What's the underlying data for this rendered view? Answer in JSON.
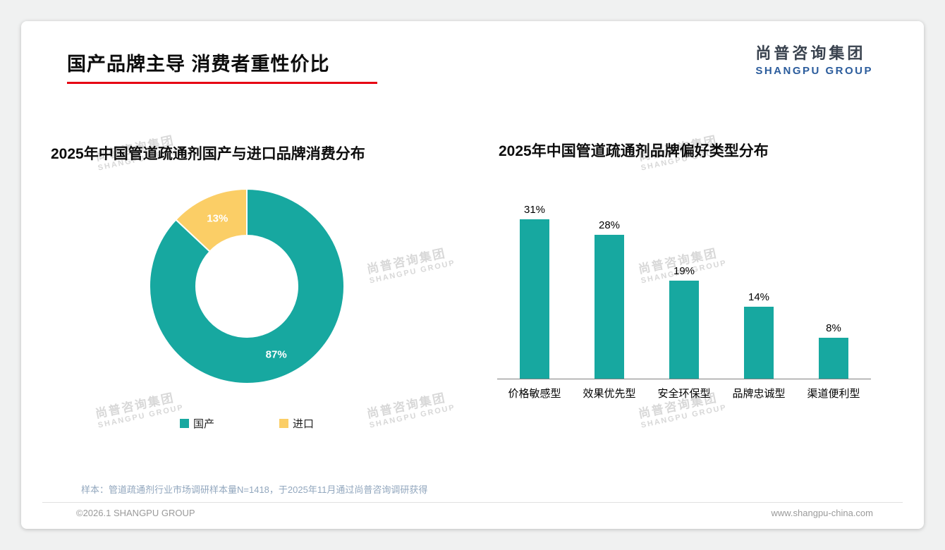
{
  "header": {
    "title": "国产品牌主导 消费者重性价比",
    "logo_cn": "尚普咨询集团",
    "logo_en": "SHANGPU GROUP"
  },
  "watermark": {
    "line1": "尚普咨询集团",
    "line2": "SHANGPU GROUP"
  },
  "footer": {
    "note": "样本：管道疏通剂行业市场调研样本量N=1418，于2025年11月通过尚普咨询调研获得",
    "copyright": "©2026.1 SHANGPU GROUP",
    "website": "www.shangpu-china.com"
  },
  "colors": {
    "teal": "#17A8A0",
    "yellow": "#FBCE66",
    "title_underline_red": "#E60012",
    "logo_cn_color": "#39424E",
    "logo_blue": "#2B5C9C"
  },
  "chart_data": [
    {
      "type": "pie",
      "donut": true,
      "title": "2025年中国管道疏通剂国产与进口品牌消费分布",
      "labels": [
        "国产",
        "进口"
      ],
      "values": [
        87,
        13
      ],
      "value_labels": [
        "87%",
        "13%"
      ],
      "colors": [
        "#17A8A0",
        "#FBCE66"
      ],
      "legend_position": "bottom"
    },
    {
      "type": "bar",
      "title": "2025年中国管道疏通剂品牌偏好类型分布",
      "categories": [
        "价格敏感型",
        "效果优先型",
        "安全环保型",
        "品牌忠诚型",
        "渠道便利型"
      ],
      "values": [
        31,
        28,
        19,
        14,
        8
      ],
      "value_labels": [
        "31%",
        "28%",
        "19%",
        "14%",
        "8%"
      ],
      "bar_color": "#17A8A0",
      "ylim": [
        0,
        35
      ],
      "grid": false,
      "ylabel": "",
      "xlabel": ""
    }
  ]
}
